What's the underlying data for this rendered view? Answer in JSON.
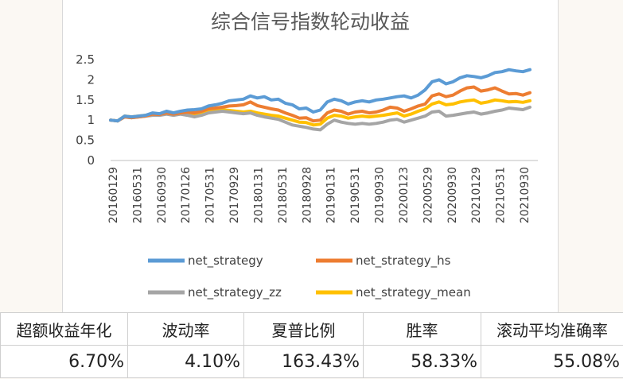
{
  "chart_data": {
    "type": "line",
    "title": "综合信号指数轮动收益",
    "ylim": [
      0,
      2.5
    ],
    "yticks": [
      "0",
      "0.5",
      "1",
      "1.5",
      "2",
      "2.5"
    ],
    "xtick_labels": [
      "20160129",
      "20160531",
      "20160930",
      "20170126",
      "20170531",
      "20170929",
      "20180131",
      "20180531",
      "20180928",
      "20190131",
      "20190531",
      "20190930",
      "20200123",
      "20200529",
      "20200930",
      "20210129",
      "20210531",
      "20210930"
    ],
    "grid": false,
    "legend_position": "bottom",
    "series": [
      {
        "name": "net_strategy",
        "color": "#5b9bd5",
        "values": [
          1.0,
          0.98,
          1.1,
          1.08,
          1.1,
          1.12,
          1.18,
          1.16,
          1.22,
          1.18,
          1.22,
          1.25,
          1.26,
          1.28,
          1.35,
          1.38,
          1.42,
          1.48,
          1.5,
          1.52,
          1.6,
          1.55,
          1.58,
          1.5,
          1.52,
          1.42,
          1.38,
          1.28,
          1.3,
          1.2,
          1.25,
          1.45,
          1.52,
          1.48,
          1.4,
          1.45,
          1.48,
          1.45,
          1.5,
          1.52,
          1.55,
          1.58,
          1.6,
          1.55,
          1.62,
          1.75,
          1.95,
          2.0,
          1.9,
          1.95,
          2.05,
          2.1,
          2.08,
          2.05,
          2.1,
          2.18,
          2.2,
          2.25,
          2.22,
          2.2,
          2.25
        ]
      },
      {
        "name": "net_strategy_hs",
        "color": "#ed7d31",
        "values": [
          1.0,
          0.98,
          1.08,
          1.06,
          1.08,
          1.1,
          1.15,
          1.14,
          1.18,
          1.15,
          1.18,
          1.2,
          1.18,
          1.22,
          1.28,
          1.3,
          1.32,
          1.35,
          1.36,
          1.38,
          1.45,
          1.36,
          1.32,
          1.28,
          1.25,
          1.18,
          1.12,
          1.05,
          1.06,
          0.98,
          1.0,
          1.18,
          1.25,
          1.22,
          1.15,
          1.2,
          1.22,
          1.18,
          1.2,
          1.25,
          1.32,
          1.3,
          1.22,
          1.28,
          1.35,
          1.4,
          1.6,
          1.65,
          1.58,
          1.62,
          1.72,
          1.8,
          1.82,
          1.72,
          1.75,
          1.8,
          1.72,
          1.65,
          1.66,
          1.62,
          1.68
        ]
      },
      {
        "name": "net_strategy_zz",
        "color": "#a5a5a5",
        "values": [
          1.0,
          0.98,
          1.08,
          1.06,
          1.08,
          1.1,
          1.12,
          1.12,
          1.15,
          1.12,
          1.15,
          1.12,
          1.08,
          1.12,
          1.18,
          1.2,
          1.22,
          1.2,
          1.18,
          1.16,
          1.18,
          1.12,
          1.08,
          1.05,
          1.02,
          0.95,
          0.88,
          0.85,
          0.82,
          0.78,
          0.76,
          0.9,
          1.0,
          0.95,
          0.92,
          0.9,
          0.92,
          0.9,
          0.92,
          0.95,
          1.0,
          1.02,
          0.95,
          1.0,
          1.05,
          1.1,
          1.2,
          1.22,
          1.1,
          1.12,
          1.15,
          1.18,
          1.2,
          1.15,
          1.18,
          1.22,
          1.25,
          1.3,
          1.28,
          1.26,
          1.32
        ]
      },
      {
        "name": "net_strategy_mean",
        "color": "#ffc000",
        "values": [
          1.0,
          0.98,
          1.1,
          1.08,
          1.1,
          1.12,
          1.14,
          1.14,
          1.18,
          1.15,
          1.18,
          1.18,
          1.15,
          1.18,
          1.22,
          1.24,
          1.26,
          1.24,
          1.22,
          1.2,
          1.22,
          1.18,
          1.15,
          1.12,
          1.1,
          1.05,
          1.0,
          0.95,
          0.94,
          0.88,
          0.9,
          1.05,
          1.12,
          1.1,
          1.05,
          1.08,
          1.1,
          1.08,
          1.1,
          1.12,
          1.15,
          1.18,
          1.1,
          1.15,
          1.22,
          1.28,
          1.4,
          1.45,
          1.38,
          1.4,
          1.45,
          1.48,
          1.5,
          1.42,
          1.45,
          1.5,
          1.48,
          1.45,
          1.46,
          1.44,
          1.48
        ]
      }
    ]
  },
  "stats_table": {
    "headers": [
      "超额收益年化",
      "波动率",
      "夏普比例",
      "胜率",
      "滚动平均准确率"
    ],
    "values": [
      "6.70%",
      "4.10%",
      "163.43%",
      "58.33%",
      "55.08%"
    ]
  }
}
